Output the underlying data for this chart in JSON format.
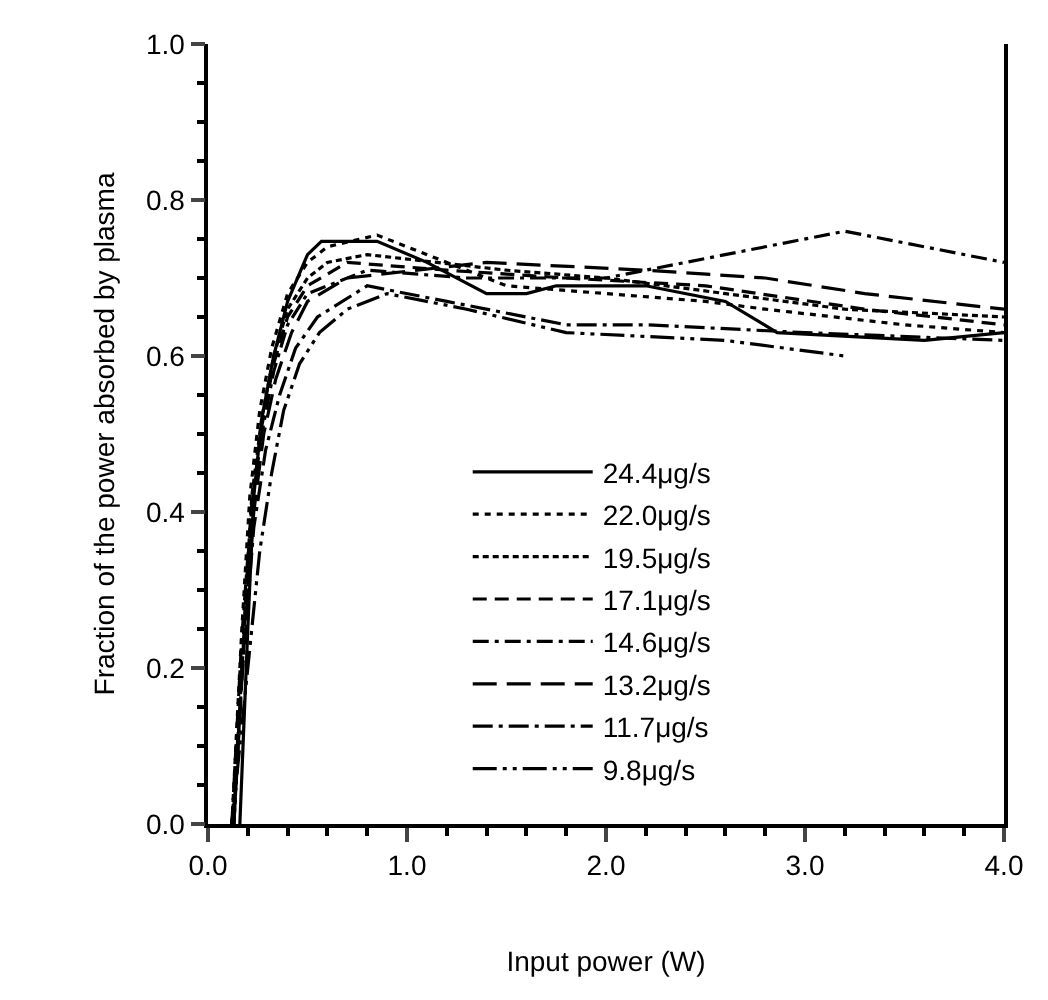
{
  "chart_data": {
    "type": "line",
    "xlabel": "Input power (W)",
    "ylabel": "Fraction of the power absorbed by plasma",
    "xlim": [
      0,
      4
    ],
    "ylim": [
      0,
      1
    ],
    "xticks": [
      {
        "value": 0,
        "label": "0.0"
      },
      {
        "value": 1,
        "label": "1.0"
      },
      {
        "value": 2,
        "label": "2.0"
      },
      {
        "value": 3,
        "label": "3.0"
      },
      {
        "value": 4,
        "label": "4.0"
      }
    ],
    "yticks": [
      {
        "value": 0,
        "label": "0.0"
      },
      {
        "value": 0.2,
        "label": "0.2"
      },
      {
        "value": 0.4,
        "label": "0.4"
      },
      {
        "value": 0.6,
        "label": "0.6"
      },
      {
        "value": 0.8,
        "label": "0.8"
      },
      {
        "value": 1,
        "label": "1.0"
      }
    ],
    "grid": false,
    "legend": "bottom",
    "marker": "none",
    "series": [
      {
        "name": "24.4μg/s",
        "color": "#000000",
        "line_style": "solid",
        "x": [
          0.16,
          0.2,
          0.23,
          0.27,
          0.33,
          0.4,
          0.5,
          0.57,
          0.85,
          1.1,
          1.4,
          1.6,
          1.75,
          2.2,
          2.6,
          2.86,
          3.6,
          4.0
        ],
        "values": [
          0,
          0.25,
          0.42,
          0.52,
          0.6,
          0.67,
          0.73,
          0.747,
          0.747,
          0.72,
          0.68,
          0.68,
          0.69,
          0.69,
          0.67,
          0.63,
          0.62,
          0.63
        ]
      },
      {
        "name": "22.0μg/s",
        "color": "#000000",
        "line_style": "dotted",
        "x": [
          0.12,
          0.17,
          0.21,
          0.26,
          0.32,
          0.4,
          0.5,
          0.6,
          0.85,
          1.2,
          1.5,
          2.0,
          2.5,
          2.8,
          3.5,
          4.0
        ],
        "values": [
          0,
          0.25,
          0.42,
          0.53,
          0.61,
          0.68,
          0.72,
          0.74,
          0.755,
          0.72,
          0.69,
          0.68,
          0.67,
          0.66,
          0.64,
          0.63
        ]
      },
      {
        "name": "19.5μg/s",
        "color": "#000000",
        "line_style": "dashed",
        "x": [
          0.13,
          0.18,
          0.22,
          0.27,
          0.33,
          0.4,
          0.5,
          0.6,
          0.8,
          1.5,
          2.0,
          2.6,
          3.2,
          4.0
        ],
        "values": [
          0,
          0.25,
          0.42,
          0.52,
          0.6,
          0.66,
          0.7,
          0.72,
          0.73,
          0.71,
          0.7,
          0.68,
          0.66,
          0.65
        ]
      },
      {
        "name": "17.1μg/s",
        "color": "#000000",
        "line_style": "dashed",
        "x": [
          0.13,
          0.18,
          0.22,
          0.27,
          0.33,
          0.4,
          0.5,
          0.7,
          1.2,
          1.8,
          2.5,
          3.3,
          4.0
        ],
        "values": [
          0,
          0.24,
          0.41,
          0.51,
          0.59,
          0.65,
          0.69,
          0.72,
          0.71,
          0.7,
          0.69,
          0.66,
          0.64
        ]
      },
      {
        "name": "14.6μg/s",
        "color": "#000000",
        "line_style": "dashed",
        "x": [
          0.12,
          0.17,
          0.22,
          0.27,
          0.33,
          0.4,
          0.5,
          0.8,
          1.3,
          2.0,
          2.8,
          3.2,
          4.0
        ],
        "values": [
          0,
          0.24,
          0.41,
          0.5,
          0.58,
          0.64,
          0.68,
          0.71,
          0.7,
          0.7,
          0.74,
          0.76,
          0.72
        ]
      },
      {
        "name": "13.2μg/s",
        "color": "#000000",
        "line_style": "dashed",
        "x": [
          0.13,
          0.18,
          0.23,
          0.28,
          0.34,
          0.42,
          0.5,
          0.7,
          1.4,
          2.2,
          2.8,
          3.3,
          4.0
        ],
        "values": [
          0,
          0.23,
          0.4,
          0.5,
          0.57,
          0.63,
          0.67,
          0.7,
          0.72,
          0.71,
          0.7,
          0.68,
          0.66
        ]
      },
      {
        "name": "11.7μg/s",
        "color": "#000000",
        "line_style": "dashed",
        "x": [
          0.12,
          0.18,
          0.23,
          0.29,
          0.36,
          0.44,
          0.55,
          0.8,
          1.2,
          1.8,
          2.2,
          3.0,
          4.0
        ],
        "values": [
          0,
          0.22,
          0.38,
          0.48,
          0.55,
          0.61,
          0.65,
          0.69,
          0.67,
          0.64,
          0.64,
          0.63,
          0.62
        ]
      },
      {
        "name": "9.8μg/s",
        "color": "#000000",
        "line_style": "dashed",
        "x": [
          0.12,
          0.2,
          0.26,
          0.32,
          0.38,
          0.46,
          0.56,
          0.7,
          0.9,
          1.3,
          1.8,
          2.6,
          3.2
        ],
        "values": [
          0,
          0.2,
          0.35,
          0.45,
          0.53,
          0.59,
          0.63,
          0.66,
          0.68,
          0.66,
          0.63,
          0.62,
          0.6
        ]
      }
    ]
  }
}
